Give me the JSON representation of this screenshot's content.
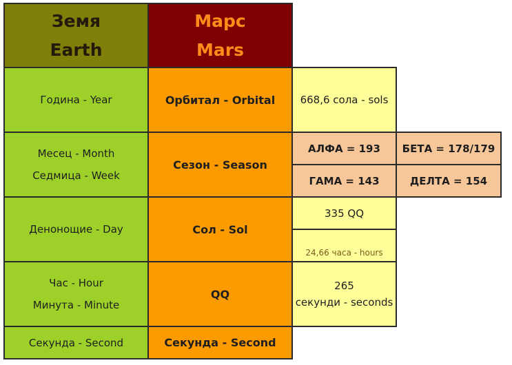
{
  "header": {
    "earth_bg": "Земя",
    "earth_en": "Earth",
    "mars_bg": "Марс",
    "mars_en": "Mars"
  },
  "rows": {
    "year": {
      "earth": "Година - Year",
      "mars": "Орбитал - Orbital",
      "value": "668,6 сола - sols"
    },
    "month": {
      "earth_1": "Месец - Month",
      "earth_2": "Седмица - Week",
      "mars": "Сезон - Season",
      "alpha": "АЛФА = 193",
      "beta": "БЕТА = 178/179",
      "gamma": "ГАМА = 143",
      "delta": "ДЕЛТА = 154"
    },
    "day": {
      "earth": "Денонощие - Day",
      "mars": "Сол - Sol",
      "value": "335 QQ",
      "note": "24,66 часа - hours"
    },
    "hour": {
      "earth_1": "Час - Hour",
      "earth_2": "Минута - Minute",
      "mars": "QQ",
      "value_1": "265",
      "value_2": "секунди - seconds"
    },
    "second": {
      "earth": "Секунда - Second",
      "mars": "Секунда - Second"
    }
  },
  "colors": {
    "earth_header": "#7f7f0a",
    "mars_header": "#7e0000",
    "mars_header_text": "#ff8c1a",
    "earth_cells": "#9dd12a",
    "mars_cells": "#fb9b00",
    "value_cells": "#ffff99",
    "season_cells": "#f7c79a"
  }
}
